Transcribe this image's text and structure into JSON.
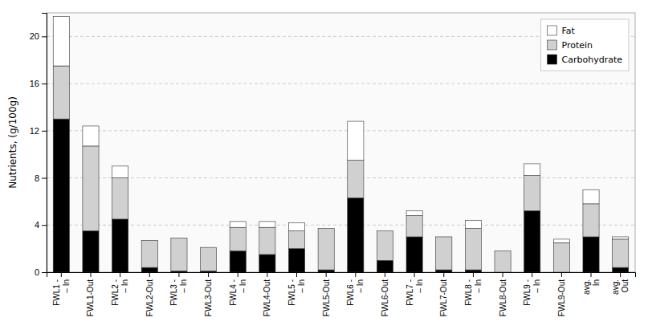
{
  "chart_data": {
    "type": "bar",
    "stacked": true,
    "ylabel": "Nutrients, (g/100g)",
    "categories": [
      "FWL1 -\n– In",
      "FWL1-Out",
      "FWL2 -\n– In",
      "FWL2-Out",
      "FWL3 -\n– In",
      "FWL3-Out",
      "FWL4 -\n– In",
      "FWL4-Out",
      "FWL5 -\n– In",
      "FWL5-Out",
      "FWL6 -\n– In",
      "FWL6-Out",
      "FWL7 -\n– In",
      "FWL7-Out",
      "FWL8 -\n– In",
      "FWL8-Out",
      "FWL9 -\n– In",
      "FWL9-Out",
      "avg.\n In",
      "avg.\n Out"
    ],
    "series": [
      {
        "name": "Carbohydrate",
        "color": "#000000",
        "values": [
          13.0,
          3.5,
          4.5,
          0.4,
          0.1,
          0.1,
          1.8,
          1.5,
          2.0,
          0.2,
          6.3,
          1.0,
          3.0,
          0.2,
          0.2,
          0.0,
          5.2,
          0.0,
          3.0,
          0.4
        ]
      },
      {
        "name": "Protein",
        "color": "#d0d0d0",
        "values": [
          4.5,
          7.2,
          3.5,
          2.3,
          2.8,
          2.0,
          2.0,
          2.3,
          1.5,
          3.5,
          3.2,
          2.5,
          1.8,
          2.8,
          3.5,
          1.8,
          3.0,
          2.5,
          2.8,
          2.4
        ]
      },
      {
        "name": "Fat",
        "color": "#ffffff",
        "values": [
          4.2,
          1.7,
          1.0,
          0.0,
          0.0,
          0.0,
          0.5,
          0.5,
          0.7,
          0.0,
          3.3,
          0.0,
          0.4,
          0.0,
          0.7,
          0.0,
          1.0,
          0.3,
          1.2,
          0.2
        ]
      }
    ],
    "ylim": [
      0,
      22
    ],
    "yticks": [
      0,
      4,
      8,
      12,
      16,
      20
    ],
    "grid": true,
    "legend": "upper right"
  }
}
